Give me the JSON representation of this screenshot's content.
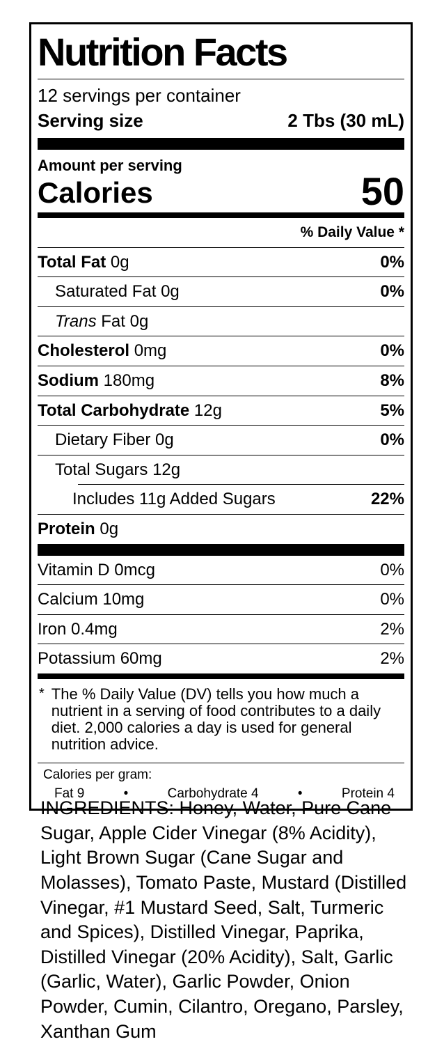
{
  "colors": {
    "text": "#000000",
    "background": "#ffffff"
  },
  "label": {
    "title": "Nutrition Facts",
    "servings_per_container": "12 servings per container",
    "serving_size": {
      "label": "Serving size",
      "value": "2 Tbs (30 mL)"
    },
    "amount_per_serving": "Amount per serving",
    "calories": {
      "label": "Calories",
      "value": "50"
    },
    "daily_value_header": "% Daily Value *",
    "main_rows": [
      {
        "key": "total-fat",
        "bold": "Total Fat",
        "italic": "",
        "text": " 0g",
        "dv": "0%",
        "dv_bold": true,
        "indent": 0,
        "divider": "full"
      },
      {
        "key": "saturated-fat",
        "bold": "",
        "italic": "",
        "text": "Saturated Fat 0g",
        "dv": "0%",
        "dv_bold": true,
        "indent": 1,
        "divider": "full"
      },
      {
        "key": "trans-fat",
        "bold": "",
        "italic": "Trans",
        "text": " Fat 0g",
        "dv": "",
        "dv_bold": false,
        "indent": 1,
        "divider": "full"
      },
      {
        "key": "cholesterol",
        "bold": "Cholesterol",
        "italic": "",
        "text": " 0mg",
        "dv": "0%",
        "dv_bold": true,
        "indent": 0,
        "divider": "full"
      },
      {
        "key": "sodium",
        "bold": "Sodium",
        "italic": "",
        "text": " 180mg",
        "dv": "8%",
        "dv_bold": true,
        "indent": 0,
        "divider": "full"
      },
      {
        "key": "total-carbohydrate",
        "bold": "Total Carbohydrate",
        "italic": "",
        "text": " 12g",
        "dv": "5%",
        "dv_bold": true,
        "indent": 0,
        "divider": "full"
      },
      {
        "key": "dietary-fiber",
        "bold": "",
        "italic": "",
        "text": "Dietary Fiber 0g",
        "dv": "0%",
        "dv_bold": true,
        "indent": 1,
        "divider": "full"
      },
      {
        "key": "total-sugars",
        "bold": "",
        "italic": "",
        "text": "Total Sugars 12g",
        "dv": "",
        "dv_bold": false,
        "indent": 1,
        "divider": "full"
      },
      {
        "key": "added-sugars",
        "bold": "",
        "italic": "",
        "text": "Includes 11g Added Sugars",
        "dv": "22%",
        "dv_bold": true,
        "indent": 2,
        "divider": "indented"
      },
      {
        "key": "protein",
        "bold": "Protein",
        "italic": "",
        "text": " 0g",
        "dv": "",
        "dv_bold": false,
        "indent": 0,
        "divider": "full"
      }
    ],
    "vitamin_rows": [
      {
        "key": "vitamin-d",
        "bold": "",
        "italic": "",
        "text": "Vitamin D 0mcg",
        "dv": "0%",
        "dv_bold": false,
        "indent": 0,
        "divider": "none"
      },
      {
        "key": "calcium",
        "bold": "",
        "italic": "",
        "text": "Calcium 10mg",
        "dv": "0%",
        "dv_bold": false,
        "indent": 0,
        "divider": "full"
      },
      {
        "key": "iron",
        "bold": "",
        "italic": "",
        "text": "Iron 0.4mg",
        "dv": "2%",
        "dv_bold": false,
        "indent": 0,
        "divider": "full"
      },
      {
        "key": "potassium",
        "bold": "",
        "italic": "",
        "text": "Potassium 60mg",
        "dv": "2%",
        "dv_bold": false,
        "indent": 0,
        "divider": "full"
      }
    ],
    "footnote": {
      "marker": "*",
      "text": "The % Daily Value (DV) tells you how much a nutrient in a serving of food contributes to a daily diet. 2,000 calories a day is used for general nutrition advice."
    },
    "calories_per_gram": {
      "heading": "Calories per gram:",
      "fat": "Fat 9",
      "bullet1": "•",
      "carbohydrate": "Carbohydrate 4",
      "bullet2": "•",
      "protein": "Protein 4"
    }
  },
  "ingredients": "INGREDIENTS: Honey, Water, Pure Cane Sugar, Apple Cider Vinegar (8% Acidity), Light Brown Sugar (Cane Sugar and Molasses), Tomato Paste, Mustard (Distilled Vinegar, #1 Mustard Seed, Salt, Turmeric and Spices), Distilled Vinegar, Paprika, Distilled Vinegar (20% Acidity), Salt, Garlic (Garlic, Water), Garlic Powder, Onion Powder, Cumin, Cilantro, Oregano, Parsley, Xanthan Gum"
}
